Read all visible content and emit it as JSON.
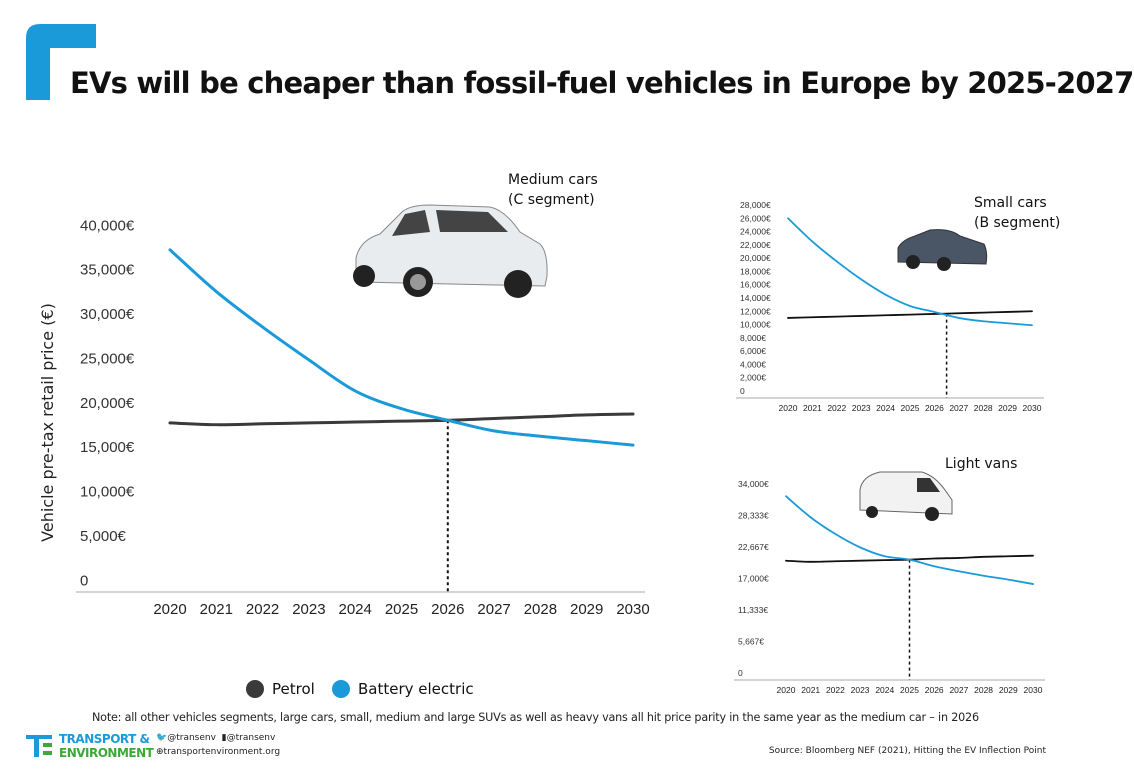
{
  "title": "EVs will be cheaper than fossil-fuel vehicles in Europe by 2025-2027",
  "colors": {
    "petrol": "#3a3a3a",
    "battery_electric": "#1a9ad9",
    "brand_blue": "#1a9ad9",
    "brand_green": "#3aa935"
  },
  "legend": {
    "petrol": "Petrol",
    "battery_electric": "Battery electric"
  },
  "note": "Note: all other vehicles segments, large cars, small, medium and large SUVs as well as heavy vans all hit price parity in the same year as the medium car – in 2026",
  "source": "Source: Bloomberg NEF (2021), Hitting the EV Inflection Point",
  "footer": {
    "brand_line1": "TRANSPORT &",
    "brand_line2": "ENVIRONMENT",
    "twitter": "@transenv",
    "facebook": "@transenv",
    "website": "transportenvironment.org"
  },
  "chart_data": [
    {
      "type": "line",
      "title": "Medium cars (C segment)",
      "title_lines": [
        "Medium cars",
        "(C segment)"
      ],
      "ylabel": "Vehicle pre-tax retail price (€)",
      "x": [
        2020,
        2021,
        2022,
        2023,
        2024,
        2025,
        2026,
        2027,
        2028,
        2029,
        2030
      ],
      "ylim": [
        0,
        40000
      ],
      "yticks": [
        "0",
        "5,000€",
        "10,000€",
        "15,000€",
        "20,000€",
        "25,000€",
        "30,000€",
        "35,000€",
        "40,000€"
      ],
      "parity_year": 2026,
      "series": [
        {
          "name": "Petrol",
          "values": [
            17700,
            17500,
            17600,
            17700,
            17800,
            17900,
            18000,
            18200,
            18400,
            18600,
            18700
          ]
        },
        {
          "name": "Battery electric",
          "values": [
            37200,
            32500,
            28500,
            24800,
            21300,
            19300,
            18000,
            16800,
            16200,
            15700,
            15200
          ]
        }
      ]
    },
    {
      "type": "line",
      "title": "Small cars (B segment)",
      "title_lines": [
        "Small cars",
        "(B segment)"
      ],
      "x": [
        2020,
        2021,
        2022,
        2023,
        2024,
        2025,
        2026,
        2027,
        2028,
        2029,
        2030
      ],
      "ylim": [
        0,
        28000
      ],
      "yticks": [
        "0",
        "2,000€",
        "4,000€",
        "6,000€",
        "8,000€",
        "10,000€",
        "12,000€",
        "14,000€",
        "16,000€",
        "18,000€",
        "20,000€",
        "22,000€",
        "24,000€",
        "26,000€",
        "28,000€"
      ],
      "parity_year": 2026.5,
      "series": [
        {
          "name": "Petrol",
          "values": [
            11000,
            11100,
            11200,
            11300,
            11400,
            11500,
            11600,
            11700,
            11800,
            11900,
            12000
          ]
        },
        {
          "name": "Battery electric",
          "values": [
            26000,
            22500,
            19500,
            16800,
            14500,
            12800,
            11900,
            11000,
            10500,
            10200,
            9900
          ]
        }
      ]
    },
    {
      "type": "line",
      "title": "Light vans",
      "title_lines": [
        "Light vans"
      ],
      "x": [
        2020,
        2021,
        2022,
        2023,
        2024,
        2025,
        2026,
        2027,
        2028,
        2029,
        2030
      ],
      "ylim": [
        0,
        34000
      ],
      "yticks": [
        "0",
        "5,667€",
        "11,333€",
        "17,000€",
        "22,667€",
        "28,333€",
        "34,000€"
      ],
      "parity_year": 2025,
      "series": [
        {
          "name": "Petrol",
          "values": [
            20200,
            20000,
            20100,
            20200,
            20300,
            20400,
            20600,
            20700,
            20900,
            21000,
            21100
          ]
        },
        {
          "name": "Battery electric",
          "values": [
            31800,
            28000,
            25000,
            22600,
            21000,
            20400,
            19200,
            18300,
            17500,
            16800,
            16000
          ]
        }
      ]
    }
  ]
}
